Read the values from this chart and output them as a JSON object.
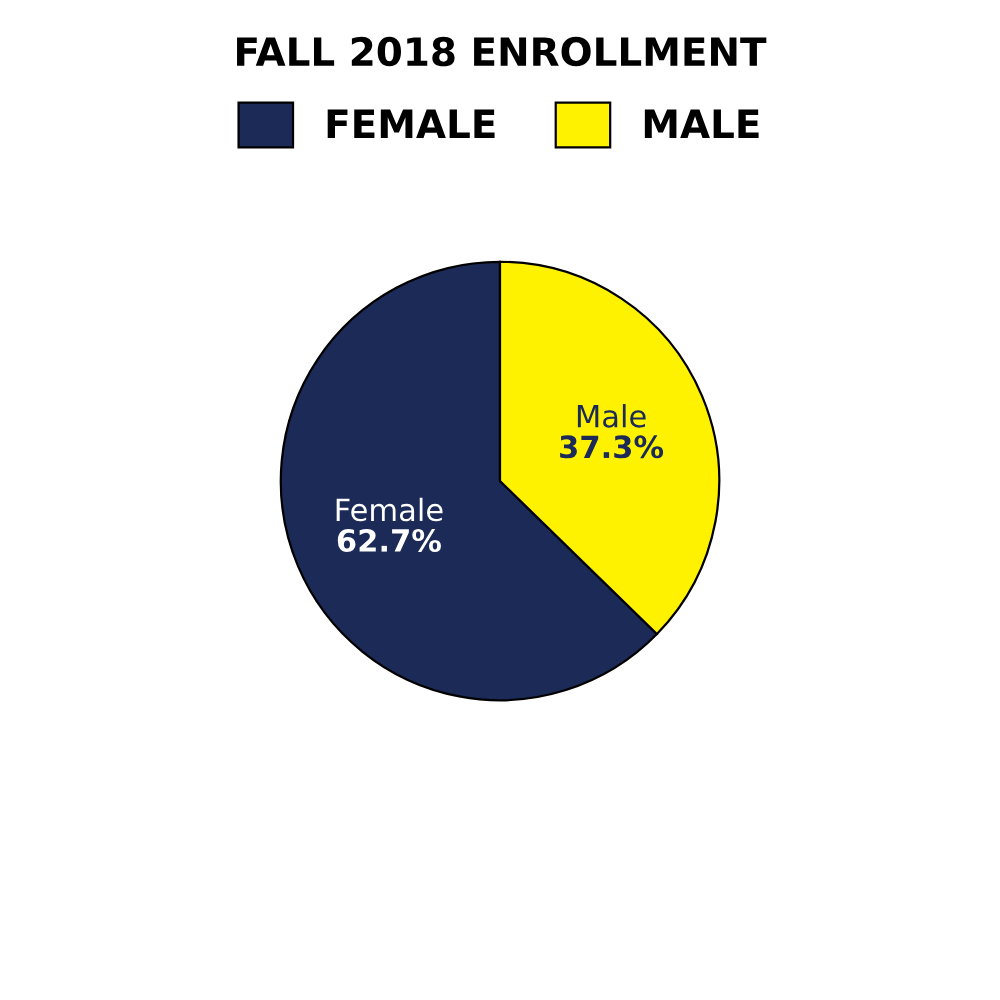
{
  "chart_data": {
    "type": "pie",
    "title": "FALL 2018 ENROLLMENT",
    "categories": [
      "FEMALE",
      "MALE"
    ],
    "values": [
      62.7,
      37.3
    ],
    "colors": [
      "#1b2a56",
      "#fff200"
    ],
    "value_labels": [
      "Female\n62.7%",
      "Male\n37.3%"
    ],
    "legend": "top"
  }
}
